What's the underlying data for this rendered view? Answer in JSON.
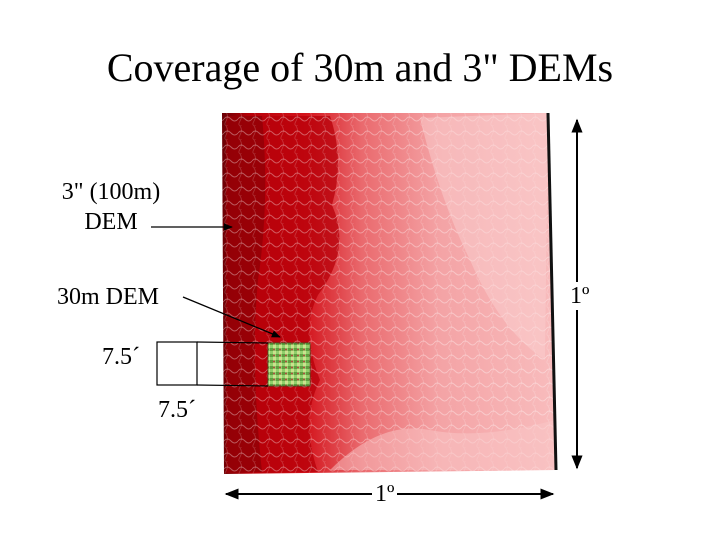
{
  "title": "Coverage of 30m and 3\" DEMs",
  "labels": {
    "dem_3arcsec_line1": "3\" (100m)",
    "dem_3arcsec_line2": "DEM",
    "dem_30m": "30m DEM",
    "extent_vertical": "1º",
    "extent_horizontal": "1º",
    "quad_height": "7.5´",
    "quad_width": "7.5´"
  },
  "colors": {
    "dem_dark_red": "#c0000a",
    "dem_mid_red": "#e0424a",
    "dem_light_red": "#f5a7a9",
    "dem_pale": "#fbd2d2",
    "dem_30m_green": "#7fc060"
  }
}
